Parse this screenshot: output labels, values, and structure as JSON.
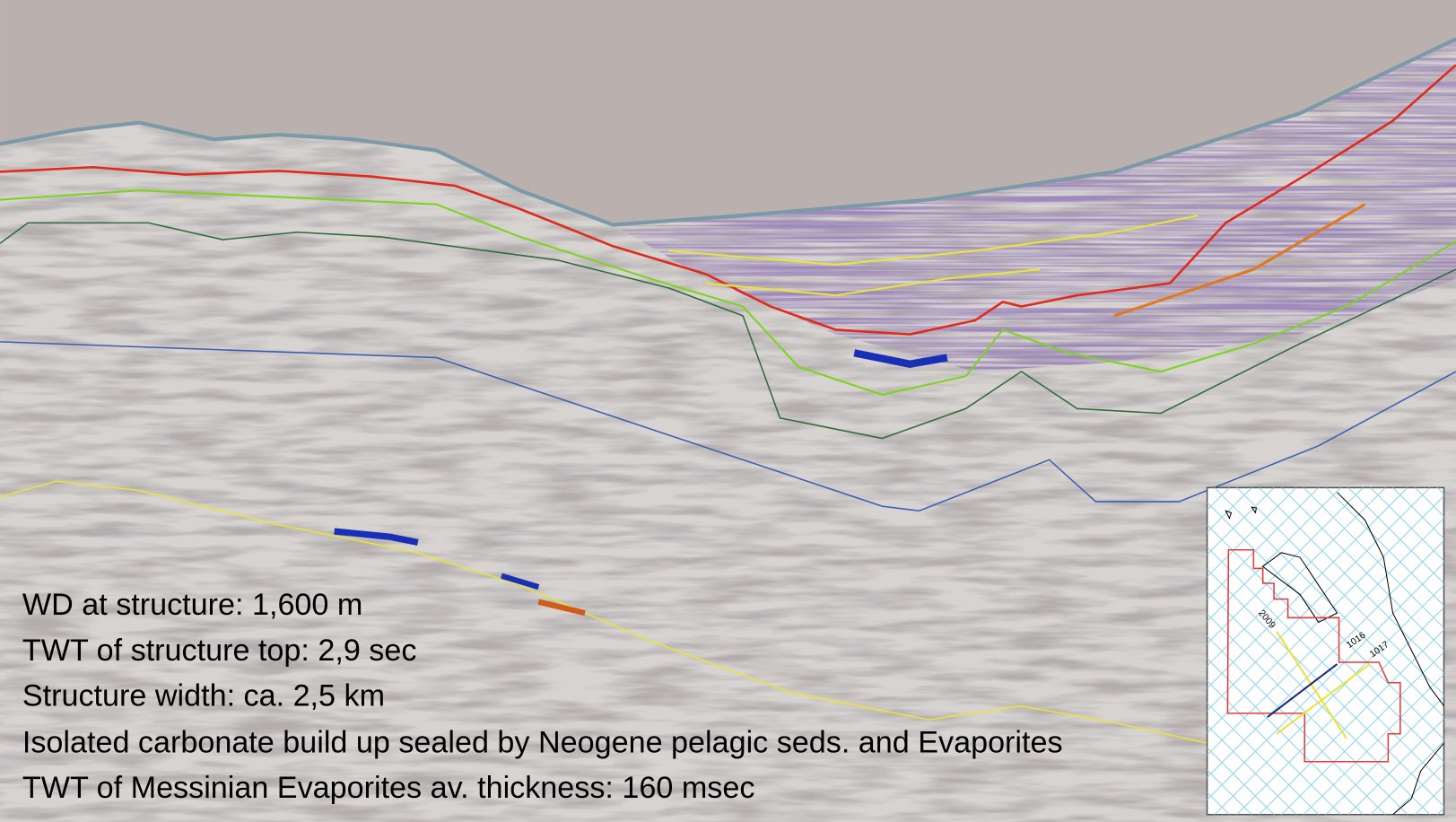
{
  "annotations": [
    "WD at structure: 1,600 m",
    "TWT of structure top: 2,9 sec",
    "Structure width: ca. 2,5 km",
    "Isolated carbonate build up sealed by Neogene pelagic seds. and Evaporites",
    "TWT of Messinian Evaporites av. thickness:  160 msec"
  ],
  "inset_map": {
    "line_labels": [
      "2009",
      "1016",
      "1017"
    ]
  }
}
